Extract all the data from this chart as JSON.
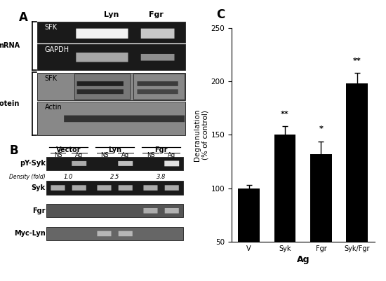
{
  "panel_C": {
    "categories": [
      "V",
      "Syk",
      "Fgr",
      "Syk/Fgr"
    ],
    "values": [
      100,
      150,
      132,
      198
    ],
    "errors": [
      3,
      8,
      12,
      10
    ],
    "significance": [
      "",
      "**",
      "*",
      "**"
    ],
    "ylabel": "Degranulation\n(% of control)",
    "xlabel": "Ag",
    "ylim": [
      50,
      250
    ],
    "yticks": [
      50,
      100,
      150,
      200,
      250
    ],
    "bar_color": "#000000",
    "panel_label": "C"
  },
  "figure_bg": "#ffffff"
}
